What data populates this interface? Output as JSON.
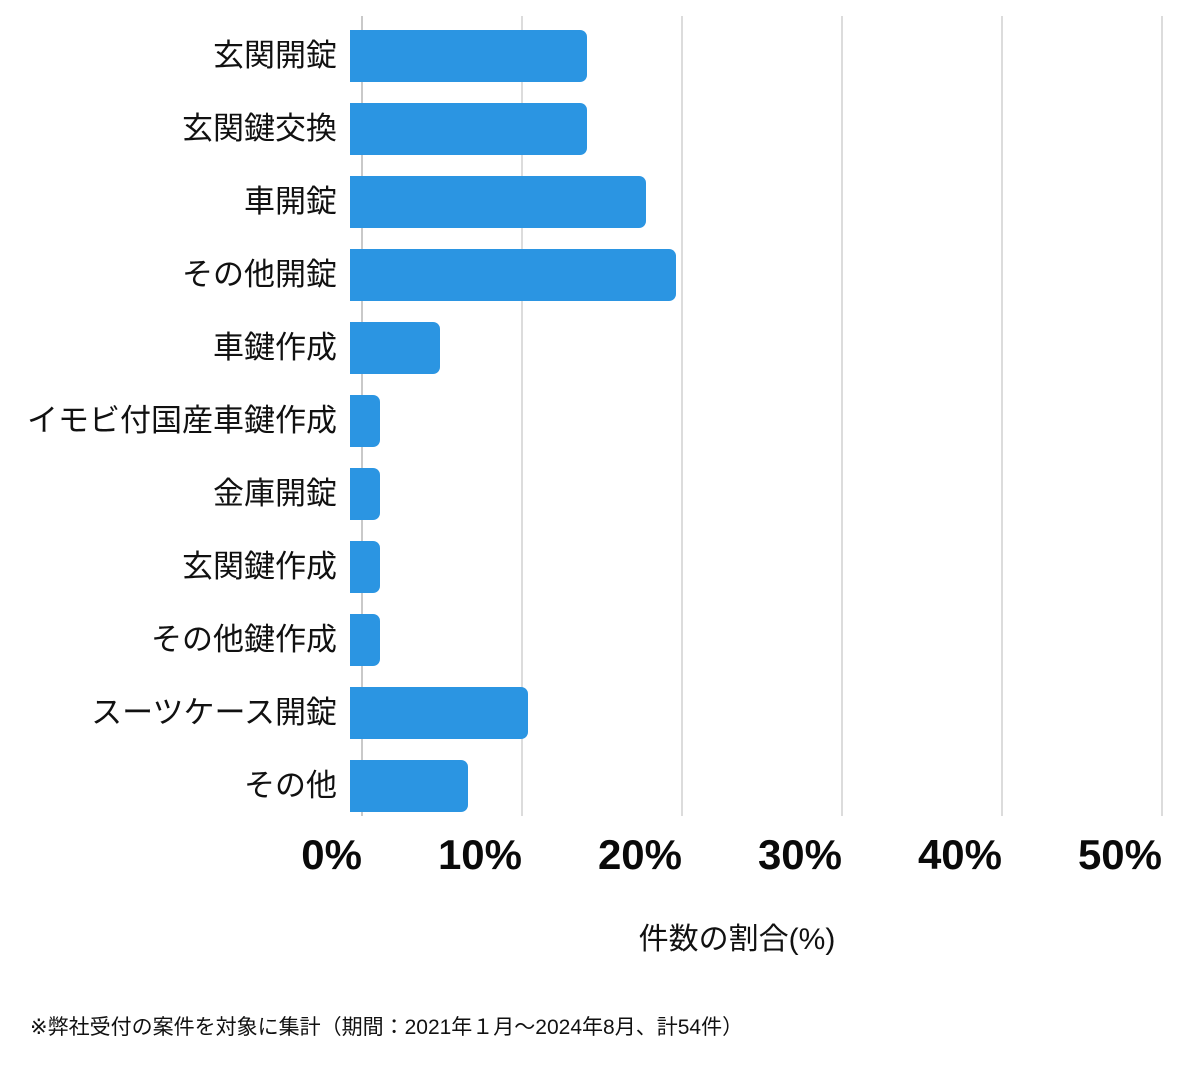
{
  "chart_data": {
    "type": "bar",
    "orientation": "horizontal",
    "categories": [
      "玄関開錠",
      "玄関鍵交換",
      "車開錠",
      "その他開錠",
      "車鍵作成",
      "イモビ付国産車鍵作成",
      "金庫開錠",
      "玄関鍵作成",
      "その他鍵作成",
      "スーツケース開錠",
      "その他"
    ],
    "values": [
      14.8,
      14.8,
      18.5,
      20.4,
      5.6,
      1.9,
      1.9,
      1.9,
      1.9,
      11.1,
      7.4
    ],
    "unit": "%",
    "xlabel": "件数の割合(%)",
    "x_ticks": [
      "0%",
      "10%",
      "20%",
      "30%",
      "40%",
      "50%"
    ],
    "x_tick_values": [
      0,
      10,
      20,
      30,
      40,
      50
    ],
    "xlim": [
      0,
      50
    ],
    "grid": "vertical",
    "legend": "none",
    "bar_color": "#2B95E2"
  },
  "colors": {
    "bar": "#2B95E2",
    "gridline": "#DCDCDC",
    "axis_line": "#C9C9C9",
    "text": "#111111",
    "background": "#FFFFFF"
  },
  "footnote": "※弊社受付の案件を対象に集計（期間：2021年１月～2024年8月、計54件）"
}
